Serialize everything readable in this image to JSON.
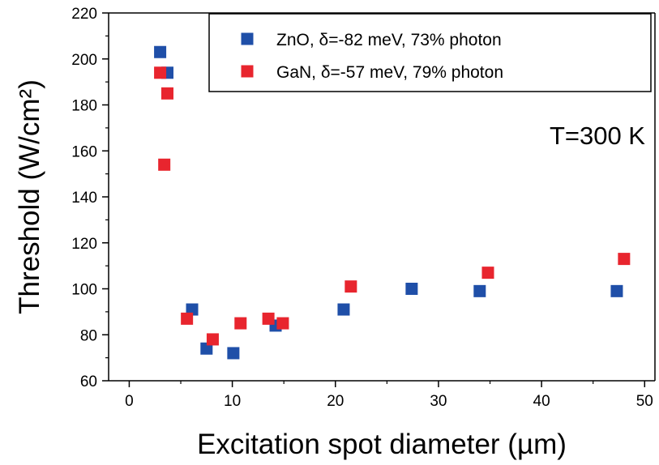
{
  "chart_data": {
    "type": "scatter",
    "title": "",
    "xlabel": "Excitation spot diameter (µm)",
    "ylabel": "Threshold (W/cm²)",
    "xlim": [
      -2,
      51
    ],
    "ylim": [
      60,
      220
    ],
    "xticks": [
      0,
      10,
      20,
      30,
      40,
      50
    ],
    "yticks": [
      60,
      80,
      100,
      120,
      140,
      160,
      180,
      200,
      220
    ],
    "grid": false,
    "legend_position": "top-right",
    "annotation": "T=300 K",
    "series": [
      {
        "name": "ZnO, δ=-82 meV, 73% photon",
        "color": "#1f4fa8",
        "marker": "square",
        "points": [
          {
            "x": 3.0,
            "y": 203
          },
          {
            "x": 3.7,
            "y": 194
          },
          {
            "x": 6.1,
            "y": 91
          },
          {
            "x": 7.5,
            "y": 74
          },
          {
            "x": 10.1,
            "y": 72
          },
          {
            "x": 14.2,
            "y": 84
          },
          {
            "x": 20.8,
            "y": 91
          },
          {
            "x": 27.4,
            "y": 100
          },
          {
            "x": 34.0,
            "y": 99
          },
          {
            "x": 47.3,
            "y": 99
          }
        ]
      },
      {
        "name": "GaN, δ=-57 meV, 79% photon",
        "color": "#e8252e",
        "marker": "square",
        "points": [
          {
            "x": 3.0,
            "y": 194
          },
          {
            "x": 3.7,
            "y": 185
          },
          {
            "x": 3.4,
            "y": 154
          },
          {
            "x": 5.6,
            "y": 87
          },
          {
            "x": 8.1,
            "y": 78
          },
          {
            "x": 10.8,
            "y": 85
          },
          {
            "x": 13.5,
            "y": 87
          },
          {
            "x": 14.9,
            "y": 85
          },
          {
            "x": 21.5,
            "y": 101
          },
          {
            "x": 34.8,
            "y": 107
          },
          {
            "x": 48.0,
            "y": 113
          }
        ]
      }
    ]
  }
}
